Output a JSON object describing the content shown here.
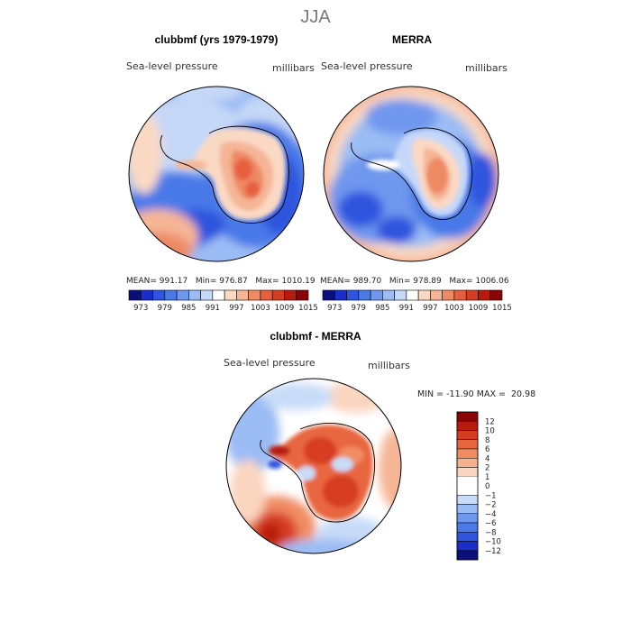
{
  "season": "JJA",
  "panels": {
    "model": {
      "title": "clubbmf (yrs 1979-1979)",
      "field_label": "Sea-level pressure",
      "units": "millibars",
      "stats": {
        "mean_label": "MEAN=",
        "mean": "991.17",
        "min_label": "Min=",
        "min": "976.87",
        "max_label": "Max=",
        "max": "1010.19"
      }
    },
    "obs": {
      "title": "MERRA",
      "field_label": "Sea-level pressure",
      "units": "millibars",
      "stats": {
        "mean_label": "MEAN=",
        "mean": "989.70",
        "min_label": "Min=",
        "min": "978.89",
        "max_label": "Max=",
        "max": "1006.06"
      }
    },
    "diff": {
      "title": "clubbmf - MERRA",
      "field_label": "Sea-level pressure",
      "units": "millibars",
      "minmax_text": "MIN = -11.90 MAX =  20.98"
    }
  },
  "chart_data": [
    {
      "type": "heatmap",
      "title": "clubbmf (yrs 1979-1979)",
      "projection": "south polar stereographic",
      "field": "Sea-level pressure",
      "units": "millibars",
      "mean": 991.17,
      "min": 976.87,
      "max": 1010.19,
      "colorbar_levels": [
        973,
        976,
        979,
        982,
        985,
        988,
        991,
        994,
        997,
        1000,
        1003,
        1006,
        1009,
        1012,
        1015
      ],
      "colorbar_tick_labels": [
        "973",
        "979",
        "985",
        "991",
        "997",
        "1003",
        "1009",
        "1015"
      ]
    },
    {
      "type": "heatmap",
      "title": "MERRA",
      "projection": "south polar stereographic",
      "field": "Sea-level pressure",
      "units": "millibars",
      "mean": 989.7,
      "min": 978.89,
      "max": 1006.06,
      "colorbar_levels": [
        973,
        976,
        979,
        982,
        985,
        988,
        991,
        994,
        997,
        1000,
        1003,
        1006,
        1009,
        1012,
        1015
      ],
      "colorbar_tick_labels": [
        "973",
        "979",
        "985",
        "991",
        "997",
        "1003",
        "1009",
        "1015"
      ]
    },
    {
      "type": "heatmap",
      "title": "clubbmf - MERRA",
      "projection": "south polar stereographic",
      "field": "Sea-level pressure",
      "units": "millibars",
      "min": -11.9,
      "max": 20.98,
      "colorbar_levels": [
        -12,
        -10,
        -8,
        -6,
        -4,
        -2,
        -1,
        0,
        1,
        2,
        4,
        6,
        8,
        10,
        12
      ],
      "colorbar_tick_labels": [
        "12",
        "10",
        "8",
        "6",
        "4",
        "2",
        "1",
        "0",
        "−1",
        "−2",
        "−4",
        "−6",
        "−8",
        "−10",
        "−12"
      ]
    }
  ],
  "colors": {
    "abs_scale": [
      "#0b0f7a",
      "#1a2fc9",
      "#2f55de",
      "#4a79e8",
      "#6f97ee",
      "#9bbcf4",
      "#c6d8f8",
      "#ffffff",
      "#fad9c4",
      "#f5b596",
      "#ee8a64",
      "#e66040",
      "#d63c22",
      "#b81a0e",
      "#8a0606"
    ],
    "diff_scale": [
      "#8a0606",
      "#b81a0e",
      "#d63c22",
      "#e8663f",
      "#f08c63",
      "#f5b090",
      "#fad5c0",
      "#ffffff",
      "#ffffff",
      "#c8dbf8",
      "#9bbcf4",
      "#6f97ee",
      "#4a79e8",
      "#2f55de",
      "#1a2fc9",
      "#0b0f7a"
    ]
  }
}
